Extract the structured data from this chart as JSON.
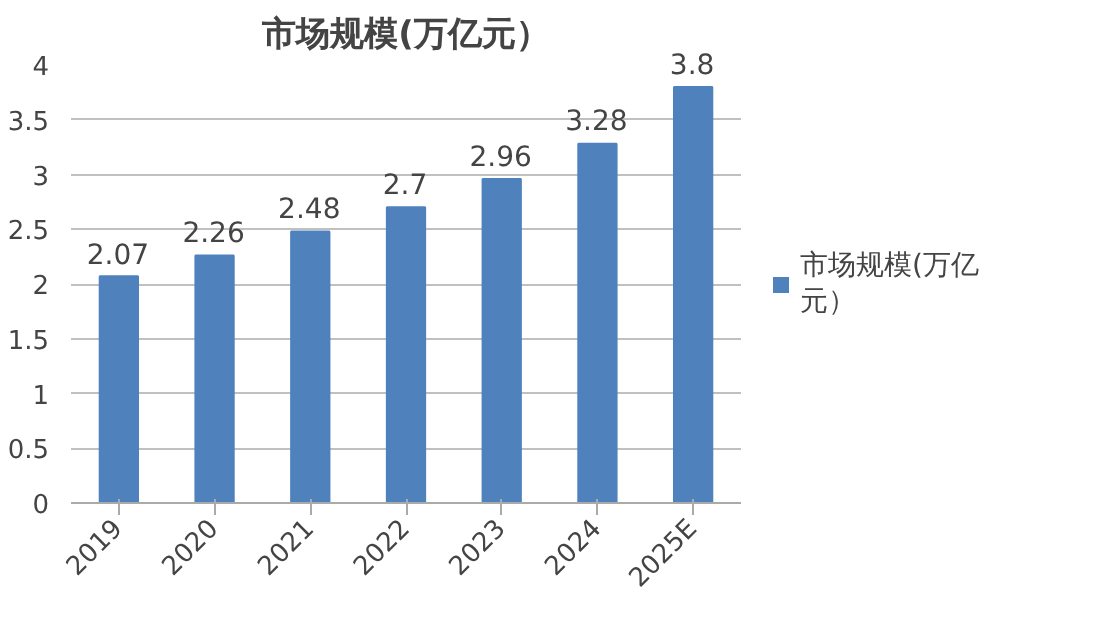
{
  "chart_data": {
    "type": "bar",
    "title": "市场规模(万亿元）",
    "categories": [
      "2019",
      "2020",
      "2021",
      "2022",
      "2023",
      "2024",
      "2025E"
    ],
    "series": [
      {
        "name": "市场规模(万亿元）",
        "color": "#4f81bd",
        "values": [
          2.07,
          2.26,
          2.48,
          2.7,
          2.96,
          3.28,
          3.8
        ]
      }
    ],
    "ylim": [
      0,
      4
    ],
    "yticks": [
      0,
      0.5,
      1,
      1.5,
      2,
      2.5,
      3,
      3.5,
      4
    ],
    "grid": "y",
    "legend": "right",
    "data_labels": true
  }
}
